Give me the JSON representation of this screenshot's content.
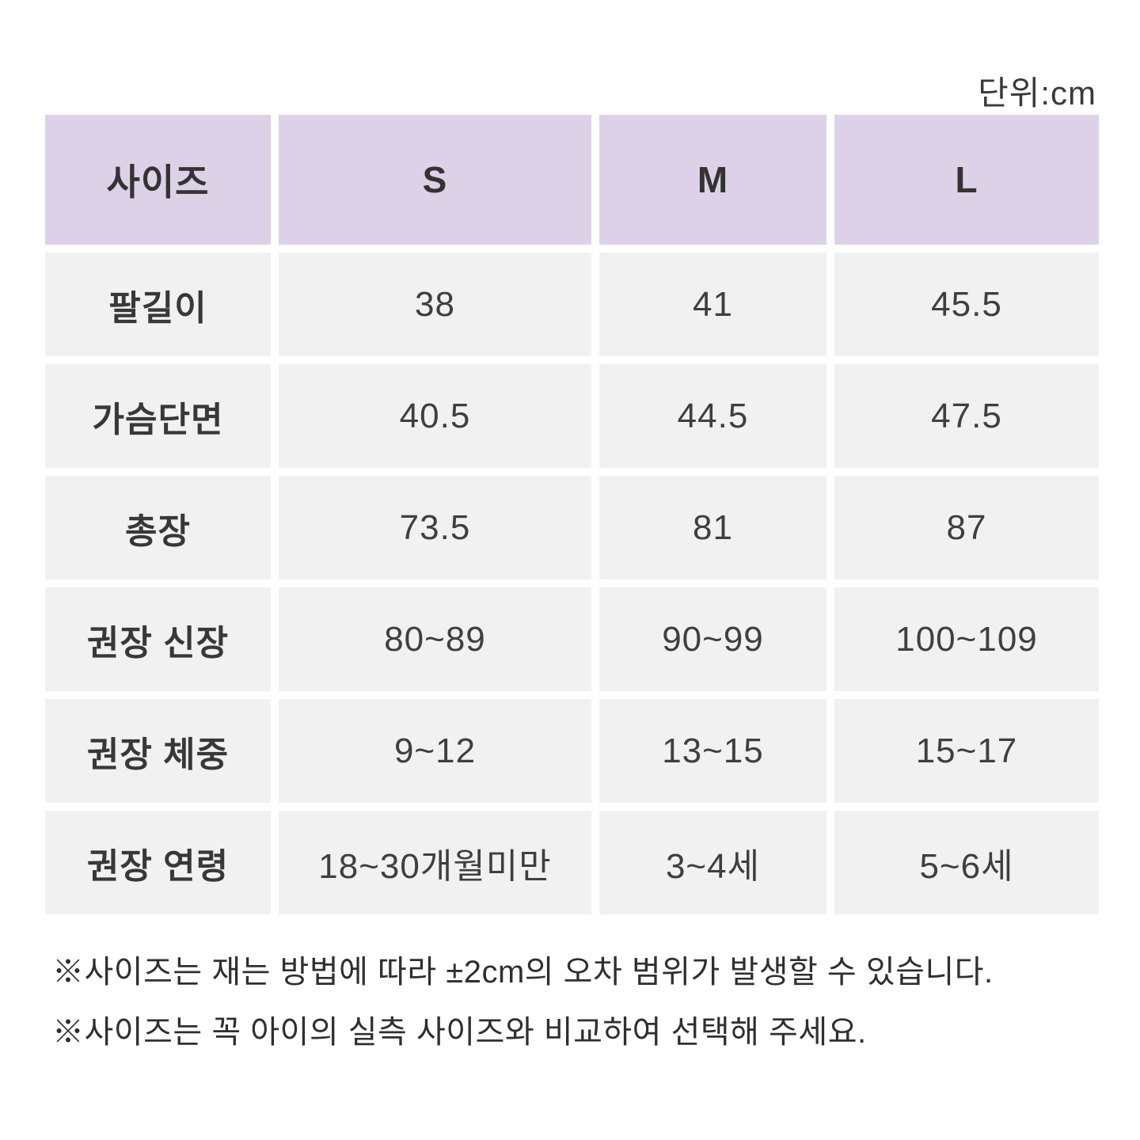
{
  "unit_label": "단위:cm",
  "colors": {
    "header_bg": "#ddd1e8",
    "row_bg": "#f1f1f1",
    "text": "#3a3a3a",
    "page_bg": "#ffffff"
  },
  "table": {
    "header": [
      "사이즈",
      "S",
      "M",
      "L"
    ],
    "rows": [
      {
        "label": "팔길이",
        "values": [
          "38",
          "41",
          "45.5"
        ]
      },
      {
        "label": "가슴단면",
        "values": [
          "40.5",
          "44.5",
          "47.5"
        ]
      },
      {
        "label": "총장",
        "values": [
          "73.5",
          "81",
          "87"
        ]
      },
      {
        "label": "권장 신장",
        "values": [
          "80~89",
          "90~99",
          "100~109"
        ]
      },
      {
        "label": "권장 체중",
        "values": [
          "9~12",
          "13~15",
          "15~17"
        ]
      },
      {
        "label": "권장 연령",
        "values": [
          "18~30개월미만",
          "3~4세",
          "5~6세"
        ]
      }
    ]
  },
  "notes": [
    "※사이즈는 재는 방법에 따라 ±2cm의 오차 범위가 발생할 수 있습니다.",
    "※사이즈는 꼭 아이의 실측 사이즈와 비교하여 선택해 주세요."
  ],
  "chart_data": {
    "type": "table",
    "unit": "cm",
    "columns": [
      "사이즈",
      "S",
      "M",
      "L"
    ],
    "rows": [
      [
        "팔길이",
        "38",
        "41",
        "45.5"
      ],
      [
        "가슴단면",
        "40.5",
        "44.5",
        "47.5"
      ],
      [
        "총장",
        "73.5",
        "81",
        "87"
      ],
      [
        "권장 신장",
        "80~89",
        "90~99",
        "100~109"
      ],
      [
        "권장 체중",
        "9~12",
        "13~15",
        "15~17"
      ],
      [
        "권장 연령",
        "18~30개월미만",
        "3~4세",
        "5~6세"
      ]
    ],
    "annotations": [
      "※사이즈는 재는 방법에 따라 ±2cm의 오차 범위가 발생할 수 있습니다.",
      "※사이즈는 꼭 아이의 실측 사이즈와 비교하여 선택해 주세요."
    ]
  }
}
